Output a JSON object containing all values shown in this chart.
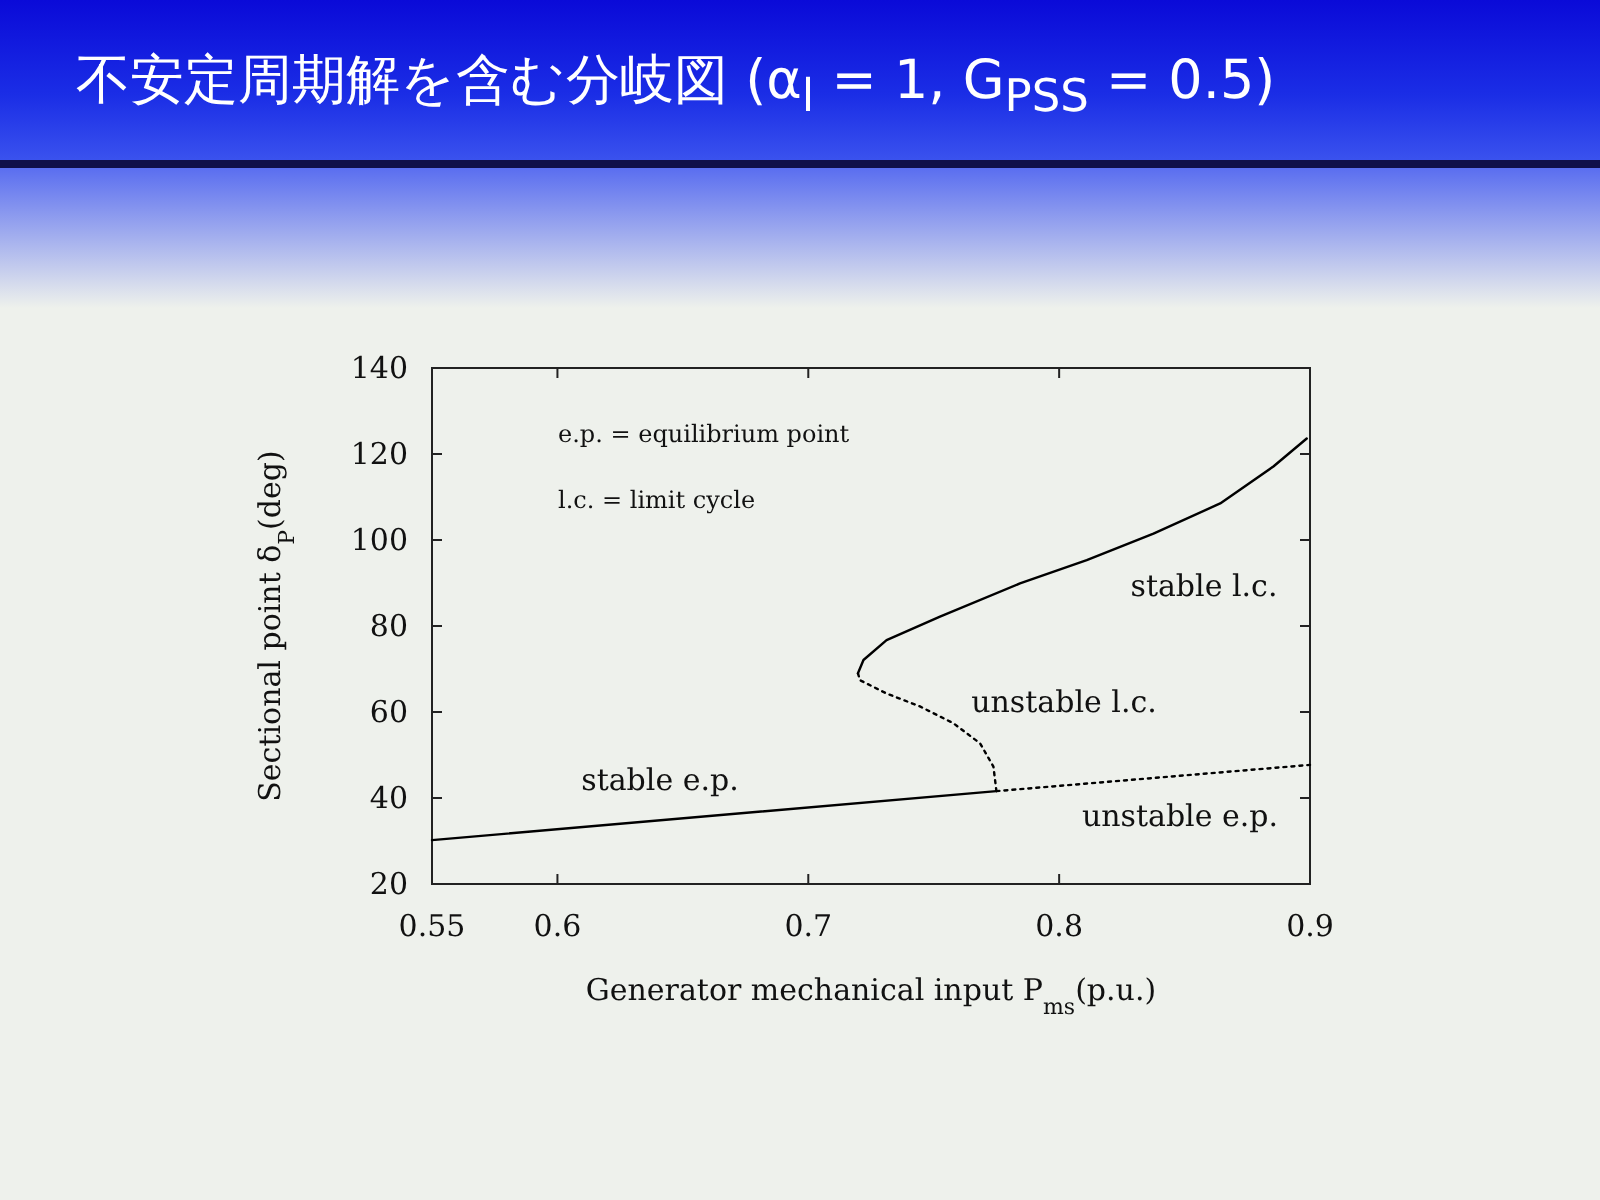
{
  "chart_data": {
    "type": "line",
    "title": "不安定周期解を含む分岐図 (α$_{l}$ = 1, G$_{PSS}$ = 0.5)",
    "xlabel": "Generator mechanical input  P$_{ms}$(p.u.)",
    "ylabel": "Sectional point  δ$_{P}$(deg)",
    "xlim": [
      0.55,
      0.9
    ],
    "ylim": [
      20,
      140
    ],
    "xticks": [
      0.55,
      0.6,
      0.7,
      0.8,
      0.9
    ],
    "yticks": [
      20,
      40,
      60,
      80,
      100,
      120,
      140
    ],
    "annotations": [
      "e.p. = equilibrium point",
      "l.c. = limit cycle"
    ],
    "series": [
      {
        "name": "stable e.p.",
        "color": "#000000",
        "line_style": "solid",
        "x": [
          0.55,
          0.775
        ],
        "values": [
          30.2,
          41.6
        ]
      },
      {
        "name": "unstable e.p.",
        "color": "#000000",
        "line_style": "dotted",
        "x": [
          0.775,
          0.9
        ],
        "values": [
          41.6,
          47.7
        ]
      },
      {
        "name": "unstable l.c.",
        "color": "#000000",
        "line_style": "dotted",
        "x": [
          0.775,
          0.7738,
          0.7685,
          0.7578,
          0.7445,
          0.7312,
          0.7206,
          0.7198
        ],
        "values": [
          41.6,
          47.3,
          52.7,
          57.4,
          61.3,
          64.3,
          67.4,
          69.0
        ]
      },
      {
        "name": "stable l.c.",
        "color": "#000000",
        "line_style": "solid",
        "x": [
          0.7198,
          0.722,
          0.7312,
          0.7525,
          0.7844,
          0.811,
          0.8376,
          0.8642,
          0.8854,
          0.8987
        ],
        "values": [
          69.0,
          72.1,
          76.7,
          82.2,
          89.9,
          95.3,
          101.5,
          108.5,
          117.1,
          123.6
        ]
      }
    ]
  }
}
